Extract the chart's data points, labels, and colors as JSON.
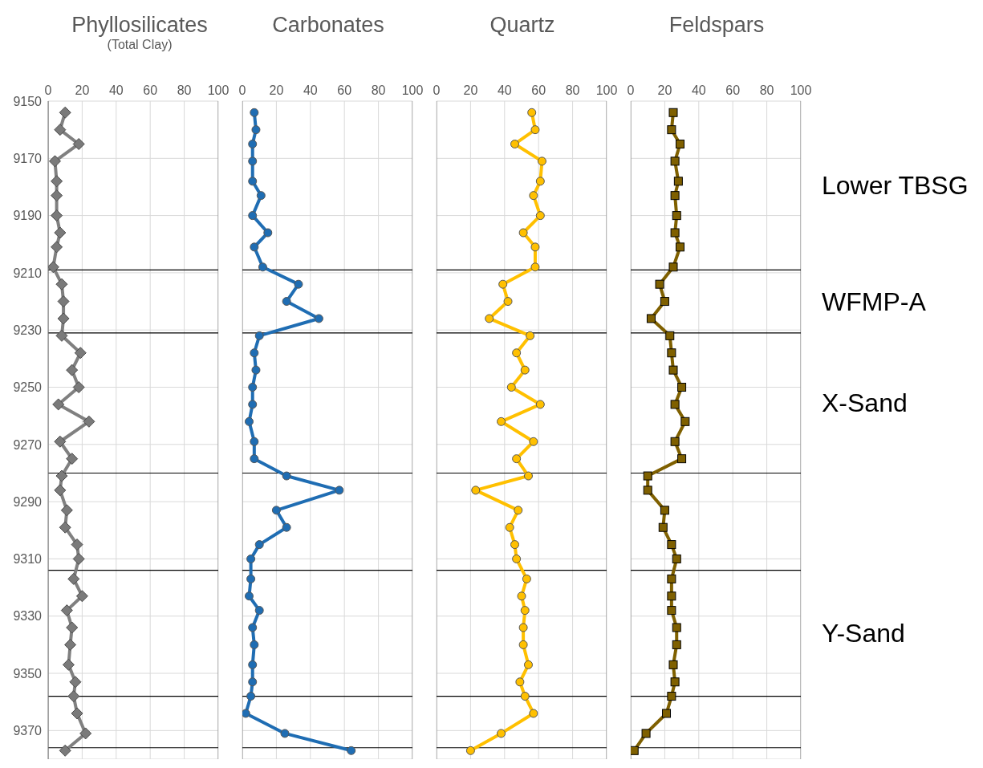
{
  "chart_data": [
    {
      "type": "line",
      "title": "Phyllosilicates",
      "subtitle": "(Total Clay)",
      "orientation": "horizontal",
      "color": "#808080",
      "marker": "diamond",
      "grid": true,
      "x": [
        9154,
        9160,
        9165,
        9171,
        9178,
        9183,
        9190,
        9196,
        9201,
        9208,
        9214,
        9220,
        9226,
        9232,
        9238,
        9244,
        9250,
        9256,
        9262,
        9269,
        9275,
        9281,
        9286,
        9293,
        9299,
        9305,
        9310,
        9317,
        9323,
        9328,
        9334,
        9340,
        9347,
        9353,
        9358,
        9364,
        9371,
        9377
      ],
      "values": [
        10,
        7,
        18,
        4,
        5,
        5,
        5,
        7,
        5,
        3,
        8,
        9,
        9,
        8,
        19,
        14,
        18,
        6,
        24,
        7,
        14,
        8,
        7,
        11,
        10,
        17,
        18,
        15,
        20,
        11,
        14,
        13,
        12,
        16,
        15,
        17,
        22,
        10
      ],
      "xlim": [
        0,
        100
      ],
      "xticks": [
        0,
        20,
        40,
        60,
        80,
        100
      ],
      "ylim": [
        9380,
        9150
      ],
      "yticks": [
        9150,
        9170,
        9190,
        9210,
        9230,
        9250,
        9270,
        9290,
        9310,
        9330,
        9350,
        9370
      ],
      "ref_lines": [
        {
          "axis": "y",
          "value": 9209
        },
        {
          "axis": "y",
          "value": 9231
        },
        {
          "axis": "y",
          "value": 9280
        },
        {
          "axis": "y",
          "value": 9314
        },
        {
          "axis": "y",
          "value": 9358
        },
        {
          "axis": "y",
          "value": 9376
        }
      ]
    },
    {
      "type": "line",
      "title": "Carbonates",
      "orientation": "horizontal",
      "color": "#1f6db3",
      "marker": "circle",
      "grid": true,
      "tick_labels": "x",
      "x": [
        9154,
        9160,
        9165,
        9171,
        9178,
        9183,
        9190,
        9196,
        9201,
        9208,
        9214,
        9220,
        9226,
        9232,
        9238,
        9244,
        9250,
        9256,
        9262,
        9269,
        9275,
        9281,
        9286,
        9293,
        9299,
        9305,
        9310,
        9317,
        9323,
        9328,
        9334,
        9340,
        9347,
        9353,
        9358,
        9364,
        9371,
        9377
      ],
      "values": [
        7,
        8,
        6,
        6,
        6,
        11,
        6,
        15,
        7,
        12,
        33,
        26,
        45,
        10,
        7,
        8,
        6,
        6,
        4,
        7,
        7,
        26,
        57,
        20,
        26,
        10,
        5,
        5,
        4,
        10,
        6,
        7,
        6,
        6,
        5,
        2,
        25,
        64
      ],
      "xlim": [
        0,
        100
      ],
      "xticks": [
        0,
        20,
        40,
        60,
        80,
        100
      ],
      "ylim": [
        9380,
        9150
      ],
      "yticks": [
        9150,
        9170,
        9190,
        9210,
        9230,
        9250,
        9270,
        9290,
        9310,
        9330,
        9350,
        9370
      ],
      "ref_lines": [
        {
          "axis": "y",
          "value": 9209
        },
        {
          "axis": "y",
          "value": 9231
        },
        {
          "axis": "y",
          "value": 9280
        },
        {
          "axis": "y",
          "value": 9314
        },
        {
          "axis": "y",
          "value": 9358
        },
        {
          "axis": "y",
          "value": 9376
        }
      ]
    },
    {
      "type": "line",
      "title": "Quartz",
      "orientation": "horizontal",
      "color": "#ffc000",
      "marker": "circle",
      "grid": true,
      "tick_labels": "x",
      "x": [
        9154,
        9160,
        9165,
        9171,
        9178,
        9183,
        9190,
        9196,
        9201,
        9208,
        9214,
        9220,
        9226,
        9232,
        9238,
        9244,
        9250,
        9256,
        9262,
        9269,
        9275,
        9281,
        9286,
        9293,
        9299,
        9305,
        9310,
        9317,
        9323,
        9328,
        9334,
        9340,
        9347,
        9353,
        9358,
        9364,
        9371,
        9377
      ],
      "values": [
        56,
        58,
        46,
        62,
        61,
        57,
        61,
        51,
        58,
        58,
        39,
        42,
        31,
        55,
        47,
        52,
        44,
        61,
        38,
        57,
        47,
        54,
        23,
        48,
        43,
        46,
        47,
        53,
        50,
        52,
        51,
        51,
        54,
        49,
        52,
        57,
        38,
        20
      ],
      "xlim": [
        0,
        100
      ],
      "xticks": [
        0,
        20,
        40,
        60,
        80,
        100
      ],
      "ylim": [
        9380,
        9150
      ],
      "yticks": [
        9150,
        9170,
        9190,
        9210,
        9230,
        9250,
        9270,
        9290,
        9310,
        9330,
        9350,
        9370
      ],
      "ref_lines": [
        {
          "axis": "y",
          "value": 9209
        },
        {
          "axis": "y",
          "value": 9231
        },
        {
          "axis": "y",
          "value": 9280
        },
        {
          "axis": "y",
          "value": 9314
        },
        {
          "axis": "y",
          "value": 9358
        },
        {
          "axis": "y",
          "value": 9376
        }
      ]
    },
    {
      "type": "line",
      "title": "Feldspars",
      "orientation": "horizontal",
      "color": "#7f6000",
      "marker": "square",
      "grid": true,
      "tick_labels": "x",
      "x": [
        9154,
        9160,
        9165,
        9171,
        9178,
        9183,
        9190,
        9196,
        9201,
        9208,
        9214,
        9220,
        9226,
        9232,
        9238,
        9244,
        9250,
        9256,
        9262,
        9269,
        9275,
        9281,
        9286,
        9293,
        9299,
        9305,
        9310,
        9317,
        9323,
        9328,
        9334,
        9340,
        9347,
        9353,
        9358,
        9364,
        9371,
        9377
      ],
      "values": [
        25,
        24,
        29,
        26,
        28,
        26,
        27,
        26,
        29,
        25,
        17,
        20,
        12,
        23,
        24,
        25,
        30,
        26,
        32,
        26,
        30,
        10,
        10,
        20,
        19,
        24,
        27,
        24,
        24,
        24,
        27,
        27,
        25,
        26,
        24,
        21,
        9,
        2
      ],
      "xlim": [
        0,
        100
      ],
      "xticks": [
        0,
        20,
        40,
        60,
        80,
        100
      ],
      "ylim": [
        9380,
        9150
      ],
      "yticks": [
        9150,
        9170,
        9190,
        9210,
        9230,
        9250,
        9270,
        9290,
        9310,
        9330,
        9350,
        9370
      ],
      "ref_lines": [
        {
          "axis": "y",
          "value": 9209
        },
        {
          "axis": "y",
          "value": 9231
        },
        {
          "axis": "y",
          "value": 9280
        },
        {
          "axis": "y",
          "value": 9314
        },
        {
          "axis": "y",
          "value": 9358
        },
        {
          "axis": "y",
          "value": 9376
        }
      ],
      "annotations": [
        "Lower TBSG",
        "WFMP-A",
        "X-Sand",
        "Y-Sand"
      ]
    }
  ]
}
